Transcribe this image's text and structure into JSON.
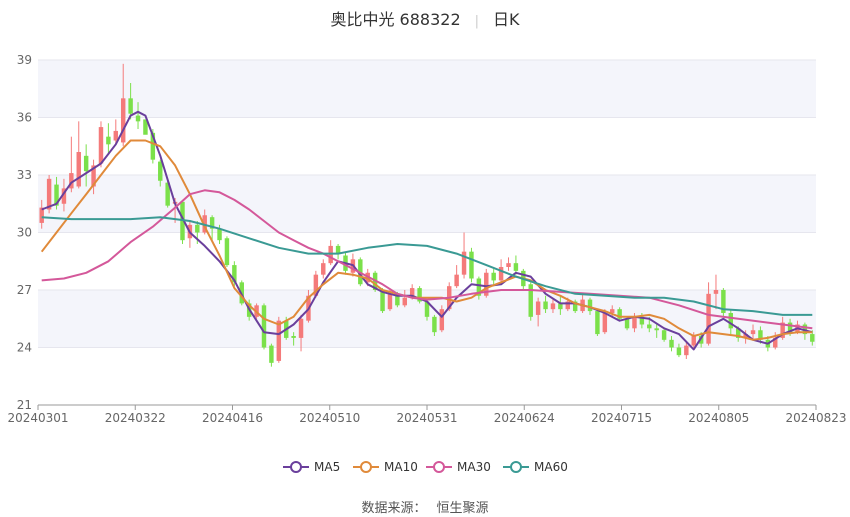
{
  "header": {
    "title": "奥比中光 688322",
    "period": "日K"
  },
  "footer": {
    "source_label": "数据来源：",
    "source_name": "恒生聚源"
  },
  "chart_data": {
    "type": "candlestick",
    "ylim": [
      21,
      39
    ],
    "yticks": [
      21,
      24,
      27,
      30,
      33,
      36,
      39
    ],
    "xtick_labels": [
      "20240301",
      "20240322",
      "20240416",
      "20240510",
      "20240531",
      "20240624",
      "20240715",
      "20240805",
      "20240823"
    ],
    "grid": true,
    "legend_position": "bottom",
    "up_color": "#f47a7a",
    "down_color": "#7be04a",
    "series": [
      {
        "name": "MA5",
        "color": "#6a3f9c"
      },
      {
        "name": "MA10",
        "color": "#e08a3a"
      },
      {
        "name": "MA30",
        "color": "#d4589a"
      },
      {
        "name": "MA60",
        "color": "#3a9a94"
      }
    ],
    "ma": {
      "MA5": [
        [
          0,
          31.2
        ],
        [
          2,
          31.5
        ],
        [
          4,
          32.6
        ],
        [
          6,
          33.1
        ],
        [
          8,
          33.6
        ],
        [
          10,
          34.6
        ],
        [
          12,
          36.1
        ],
        [
          13,
          36.3
        ],
        [
          14,
          36.1
        ],
        [
          16,
          34.0
        ],
        [
          18,
          31.5
        ],
        [
          20,
          30.0
        ],
        [
          22,
          29.3
        ],
        [
          24,
          28.5
        ],
        [
          26,
          27.5
        ],
        [
          28,
          26.0
        ],
        [
          30,
          24.8
        ],
        [
          32,
          24.7
        ],
        [
          34,
          25.2
        ],
        [
          36,
          26.0
        ],
        [
          38,
          27.4
        ],
        [
          40,
          28.5
        ],
        [
          42,
          28.3
        ],
        [
          44,
          27.3
        ],
        [
          46,
          26.9
        ],
        [
          48,
          26.7
        ],
        [
          50,
          26.7
        ],
        [
          52,
          26.4
        ],
        [
          54,
          25.6
        ],
        [
          56,
          26.6
        ],
        [
          58,
          27.3
        ],
        [
          60,
          27.2
        ],
        [
          62,
          27.3
        ],
        [
          64,
          27.9
        ],
        [
          66,
          27.7
        ],
        [
          68,
          26.8
        ],
        [
          70,
          26.3
        ],
        [
          72,
          26.3
        ],
        [
          74,
          26.1
        ],
        [
          76,
          25.8
        ],
        [
          78,
          25.4
        ],
        [
          80,
          25.6
        ],
        [
          82,
          25.5
        ],
        [
          84,
          25.0
        ],
        [
          86,
          24.7
        ],
        [
          88,
          23.9
        ],
        [
          90,
          25.1
        ],
        [
          92,
          25.5
        ],
        [
          94,
          25.0
        ],
        [
          96,
          24.4
        ],
        [
          98,
          24.2
        ],
        [
          100,
          24.7
        ],
        [
          102,
          25.0
        ],
        [
          104,
          24.8
        ]
      ],
      "MA10": [
        [
          0,
          29.0
        ],
        [
          2,
          30.0
        ],
        [
          4,
          31.0
        ],
        [
          6,
          32.0
        ],
        [
          8,
          33.0
        ],
        [
          10,
          34.0
        ],
        [
          12,
          34.8
        ],
        [
          14,
          34.8
        ],
        [
          16,
          34.5
        ],
        [
          18,
          33.5
        ],
        [
          20,
          32.0
        ],
        [
          22,
          30.3
        ],
        [
          24,
          28.8
        ],
        [
          26,
          27.1
        ],
        [
          28,
          26.2
        ],
        [
          30,
          25.5
        ],
        [
          32,
          25.2
        ],
        [
          34,
          25.6
        ],
        [
          36,
          26.6
        ],
        [
          38,
          27.3
        ],
        [
          40,
          27.9
        ],
        [
          42,
          27.8
        ],
        [
          44,
          27.6
        ],
        [
          46,
          27.0
        ],
        [
          48,
          26.8
        ],
        [
          50,
          26.6
        ],
        [
          52,
          26.6
        ],
        [
          54,
          26.6
        ],
        [
          56,
          26.4
        ],
        [
          58,
          26.6
        ],
        [
          60,
          27.1
        ],
        [
          62,
          27.4
        ],
        [
          64,
          27.7
        ],
        [
          66,
          27.5
        ],
        [
          68,
          27.0
        ],
        [
          70,
          26.7
        ],
        [
          72,
          26.3
        ],
        [
          74,
          26.1
        ],
        [
          76,
          25.9
        ],
        [
          78,
          25.6
        ],
        [
          80,
          25.6
        ],
        [
          82,
          25.7
        ],
        [
          84,
          25.5
        ],
        [
          86,
          25.0
        ],
        [
          88,
          24.6
        ],
        [
          90,
          24.8
        ],
        [
          92,
          24.7
        ],
        [
          94,
          24.6
        ],
        [
          96,
          24.4
        ],
        [
          98,
          24.5
        ],
        [
          100,
          24.7
        ],
        [
          102,
          24.8
        ],
        [
          104,
          24.8
        ]
      ],
      "MA30": [
        [
          0,
          27.5
        ],
        [
          3,
          27.6
        ],
        [
          6,
          27.9
        ],
        [
          9,
          28.5
        ],
        [
          12,
          29.5
        ],
        [
          15,
          30.3
        ],
        [
          18,
          31.3
        ],
        [
          20,
          32.0
        ],
        [
          22,
          32.2
        ],
        [
          24,
          32.1
        ],
        [
          26,
          31.7
        ],
        [
          28,
          31.2
        ],
        [
          30,
          30.6
        ],
        [
          32,
          30.0
        ],
        [
          34,
          29.6
        ],
        [
          36,
          29.2
        ],
        [
          38,
          28.9
        ],
        [
          40,
          28.5
        ],
        [
          42,
          28.1
        ],
        [
          44,
          27.7
        ],
        [
          46,
          27.3
        ],
        [
          48,
          26.8
        ],
        [
          50,
          26.6
        ],
        [
          52,
          26.5
        ],
        [
          55,
          26.6
        ],
        [
          58,
          26.8
        ],
        [
          62,
          27.0
        ],
        [
          66,
          27.0
        ],
        [
          70,
          26.9
        ],
        [
          74,
          26.8
        ],
        [
          78,
          26.7
        ],
        [
          82,
          26.6
        ],
        [
          86,
          26.2
        ],
        [
          90,
          25.7
        ],
        [
          94,
          25.5
        ],
        [
          98,
          25.3
        ],
        [
          102,
          25.1
        ],
        [
          104,
          25.0
        ]
      ],
      "MA60": [
        [
          0,
          30.8
        ],
        [
          4,
          30.7
        ],
        [
          8,
          30.7
        ],
        [
          12,
          30.7
        ],
        [
          16,
          30.8
        ],
        [
          20,
          30.6
        ],
        [
          24,
          30.2
        ],
        [
          28,
          29.7
        ],
        [
          32,
          29.2
        ],
        [
          36,
          28.9
        ],
        [
          40,
          28.9
        ],
        [
          44,
          29.2
        ],
        [
          48,
          29.4
        ],
        [
          52,
          29.3
        ],
        [
          56,
          28.9
        ],
        [
          60,
          28.3
        ],
        [
          64,
          27.7
        ],
        [
          68,
          27.2
        ],
        [
          72,
          26.8
        ],
        [
          76,
          26.7
        ],
        [
          80,
          26.6
        ],
        [
          84,
          26.6
        ],
        [
          88,
          26.4
        ],
        [
          92,
          26.0
        ],
        [
          96,
          25.9
        ],
        [
          100,
          25.7
        ],
        [
          104,
          25.7
        ]
      ]
    },
    "candles": [
      [
        30.5,
        31.3,
        31.7,
        30.2
      ],
      [
        31.2,
        32.8,
        33.0,
        31.0
      ],
      [
        32.5,
        31.4,
        32.9,
        31.2
      ],
      [
        31.5,
        32.3,
        32.8,
        31.1
      ],
      [
        32.3,
        33.1,
        35.0,
        32.1
      ],
      [
        32.4,
        34.2,
        35.8,
        32.3
      ],
      [
        34.0,
        33.2,
        34.6,
        32.4
      ],
      [
        32.4,
        33.5,
        33.8,
        32.0
      ],
      [
        33.6,
        35.5,
        35.8,
        33.4
      ],
      [
        35.0,
        34.6,
        35.7,
        34.1
      ],
      [
        34.8,
        35.3,
        35.9,
        34.6
      ],
      [
        34.7,
        37.0,
        38.8,
        34.5
      ],
      [
        37.0,
        36.2,
        37.8,
        35.9
      ],
      [
        36.1,
        35.8,
        36.8,
        35.4
      ],
      [
        35.9,
        35.1,
        35.5,
        35.3
      ],
      [
        35.2,
        33.8,
        35.4,
        33.6
      ],
      [
        33.7,
        32.7,
        33.8,
        32.4
      ],
      [
        32.6,
        31.4,
        32.7,
        31.3
      ],
      [
        31.5,
        31.6,
        31.8,
        30.5
      ],
      [
        31.6,
        29.6,
        31.7,
        29.4
      ],
      [
        29.7,
        30.4,
        30.6,
        29.2
      ],
      [
        30.4,
        30.0,
        30.6,
        29.4
      ],
      [
        30.0,
        30.9,
        31.2,
        29.9
      ],
      [
        30.8,
        30.2,
        30.9,
        29.6
      ],
      [
        30.2,
        29.6,
        30.4,
        29.4
      ],
      [
        29.7,
        28.3,
        29.8,
        28.2
      ],
      [
        28.3,
        27.4,
        28.5,
        27.2
      ],
      [
        27.4,
        26.3,
        27.5,
        26.2
      ],
      [
        26.3,
        25.6,
        26.5,
        25.4
      ],
      [
        25.6,
        26.2,
        26.3,
        25.5
      ],
      [
        26.2,
        24.0,
        26.3,
        23.9
      ],
      [
        24.1,
        23.2,
        24.2,
        23.0
      ],
      [
        23.3,
        25.4,
        25.6,
        23.2
      ],
      [
        25.4,
        24.5,
        25.6,
        24.4
      ],
      [
        24.6,
        24.5,
        24.8,
        24.1
      ],
      [
        24.5,
        25.5,
        25.7,
        23.8
      ],
      [
        25.4,
        26.7,
        27.0,
        25.3
      ],
      [
        26.7,
        27.8,
        28.0,
        26.6
      ],
      [
        27.8,
        28.4,
        28.6,
        27.6
      ],
      [
        28.4,
        29.3,
        29.6,
        28.3
      ],
      [
        29.3,
        28.9,
        29.4,
        28.6
      ],
      [
        28.8,
        28.0,
        29.0,
        27.8
      ],
      [
        27.9,
        28.6,
        28.9,
        27.7
      ],
      [
        28.6,
        27.3,
        28.7,
        27.2
      ],
      [
        27.4,
        27.9,
        28.1,
        27.2
      ],
      [
        27.9,
        27.0,
        28.0,
        26.9
      ],
      [
        27.0,
        25.9,
        27.1,
        25.8
      ],
      [
        26.0,
        26.8,
        27.0,
        25.9
      ],
      [
        26.8,
        26.2,
        26.9,
        26.1
      ],
      [
        26.2,
        26.6,
        27.0,
        26.1
      ],
      [
        26.6,
        27.1,
        27.3,
        26.5
      ],
      [
        27.1,
        26.4,
        27.2,
        26.3
      ],
      [
        26.4,
        25.6,
        26.5,
        25.4
      ],
      [
        25.6,
        24.8,
        25.7,
        24.6
      ],
      [
        24.9,
        26.0,
        26.2,
        24.8
      ],
      [
        26.0,
        27.2,
        27.4,
        25.9
      ],
      [
        27.2,
        27.8,
        28.3,
        27.1
      ],
      [
        27.8,
        29.0,
        30.0,
        27.6
      ],
      [
        29.0,
        27.6,
        29.2,
        27.4
      ],
      [
        27.6,
        26.7,
        27.7,
        26.5
      ],
      [
        26.7,
        27.9,
        28.1,
        26.6
      ],
      [
        27.9,
        27.5,
        28.1,
        27.3
      ],
      [
        27.5,
        28.2,
        28.6,
        27.4
      ],
      [
        28.2,
        28.4,
        28.7,
        28.0
      ],
      [
        28.4,
        28.0,
        28.8,
        27.8
      ],
      [
        28.0,
        27.2,
        28.1,
        27.0
      ],
      [
        27.3,
        25.6,
        27.4,
        25.4
      ],
      [
        25.7,
        26.4,
        26.6,
        25.1
      ],
      [
        26.4,
        26.0,
        26.7,
        25.8
      ],
      [
        26.0,
        26.3,
        26.5,
        25.8
      ],
      [
        26.3,
        26.0,
        26.7,
        25.7
      ],
      [
        26.0,
        26.4,
        26.6,
        25.9
      ],
      [
        26.4,
        25.9,
        26.5,
        25.8
      ],
      [
        25.9,
        26.5,
        26.8,
        25.8
      ],
      [
        26.5,
        25.9,
        26.6,
        25.7
      ],
      [
        25.9,
        24.7,
        26.0,
        24.6
      ],
      [
        24.8,
        25.8,
        26.0,
        24.7
      ],
      [
        25.8,
        26.0,
        26.2,
        25.6
      ],
      [
        26.0,
        25.5,
        26.1,
        25.4
      ],
      [
        25.5,
        25.0,
        25.6,
        24.9
      ],
      [
        25.0,
        25.6,
        25.8,
        24.8
      ],
      [
        25.6,
        25.2,
        25.8,
        25.0
      ],
      [
        25.2,
        25.0,
        25.6,
        24.8
      ],
      [
        25.0,
        24.9,
        25.2,
        24.5
      ],
      [
        24.9,
        24.4,
        25.0,
        24.3
      ],
      [
        24.4,
        24.0,
        24.6,
        23.8
      ],
      [
        24.0,
        23.6,
        24.2,
        23.5
      ],
      [
        23.6,
        24.1,
        24.3,
        23.4
      ],
      [
        24.1,
        24.6,
        24.8,
        24.0
      ],
      [
        24.6,
        24.2,
        24.8,
        24.0
      ],
      [
        24.2,
        26.8,
        27.4,
        24.1
      ],
      [
        26.8,
        27.0,
        27.8,
        26.0
      ],
      [
        27.0,
        25.8,
        27.1,
        25.6
      ],
      [
        25.8,
        25.0,
        26.0,
        24.7
      ],
      [
        25.0,
        24.5,
        25.1,
        24.3
      ],
      [
        24.5,
        24.7,
        24.9,
        24.2
      ],
      [
        24.7,
        24.9,
        25.2,
        24.4
      ],
      [
        24.9,
        24.4,
        25.1,
        24.2
      ],
      [
        24.4,
        24.0,
        24.6,
        23.8
      ],
      [
        24.0,
        24.5,
        24.8,
        23.9
      ],
      [
        24.5,
        25.3,
        25.6,
        24.4
      ],
      [
        25.3,
        24.8,
        25.5,
        24.6
      ],
      [
        24.8,
        25.2,
        25.4,
        24.7
      ],
      [
        25.2,
        24.7,
        25.3,
        24.4
      ],
      [
        24.7,
        24.3,
        24.9,
        24.1
      ]
    ]
  }
}
